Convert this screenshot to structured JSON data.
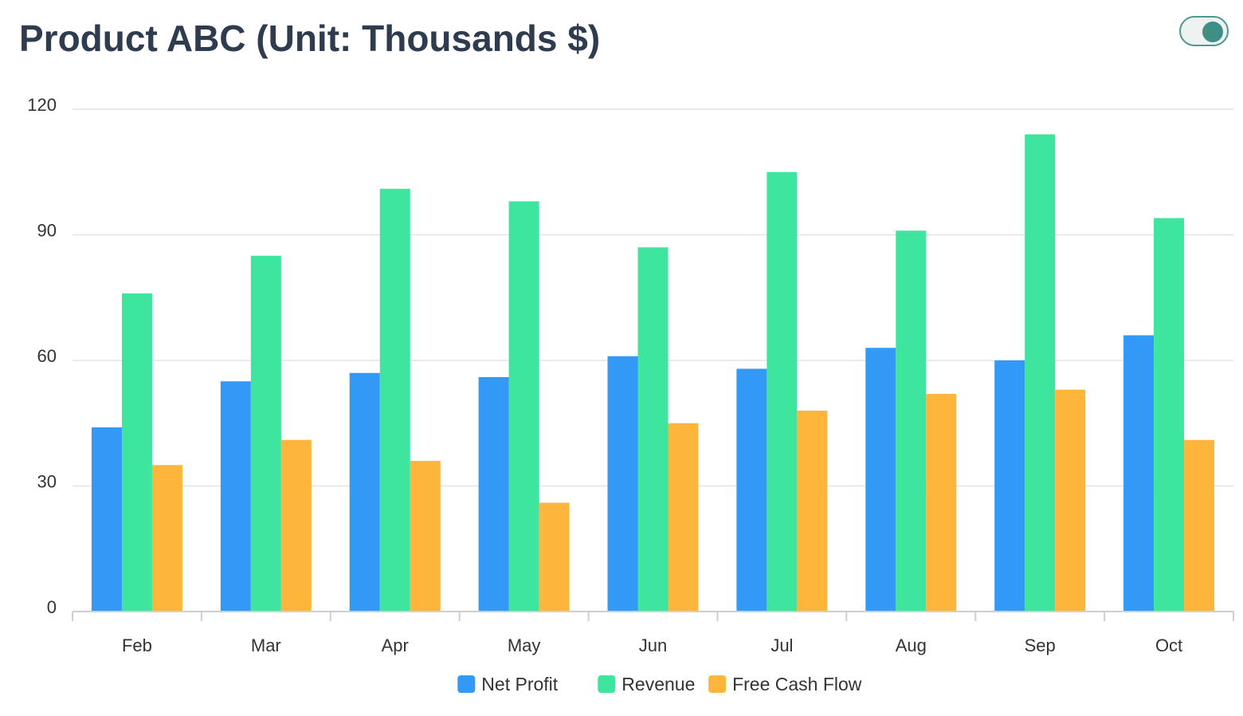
{
  "title": "Product ABC (Unit: Thousands $)",
  "toggle": {
    "state": "on",
    "color": "#3f8f86"
  },
  "chart_data": {
    "type": "bar",
    "title": "Product ABC (Unit: Thousands $)",
    "xlabel": "",
    "ylabel": "",
    "categories": [
      "Feb",
      "Mar",
      "Apr",
      "May",
      "Jun",
      "Jul",
      "Aug",
      "Sep",
      "Oct"
    ],
    "series": [
      {
        "name": "Net Profit",
        "color": "#3399f7",
        "values": [
          44,
          55,
          57,
          56,
          61,
          58,
          63,
          60,
          66
        ]
      },
      {
        "name": "Revenue",
        "color": "#3ee59e",
        "values": [
          76,
          85,
          101,
          98,
          87,
          105,
          91,
          114,
          94
        ]
      },
      {
        "name": "Free Cash Flow",
        "color": "#feb53c",
        "values": [
          35,
          41,
          36,
          26,
          45,
          48,
          52,
          53,
          41
        ]
      }
    ],
    "ylim": [
      0,
      120
    ],
    "yticks": [
      "0",
      "30",
      "60",
      "90",
      "120"
    ],
    "grid": true,
    "legend_position": "bottom-center"
  }
}
